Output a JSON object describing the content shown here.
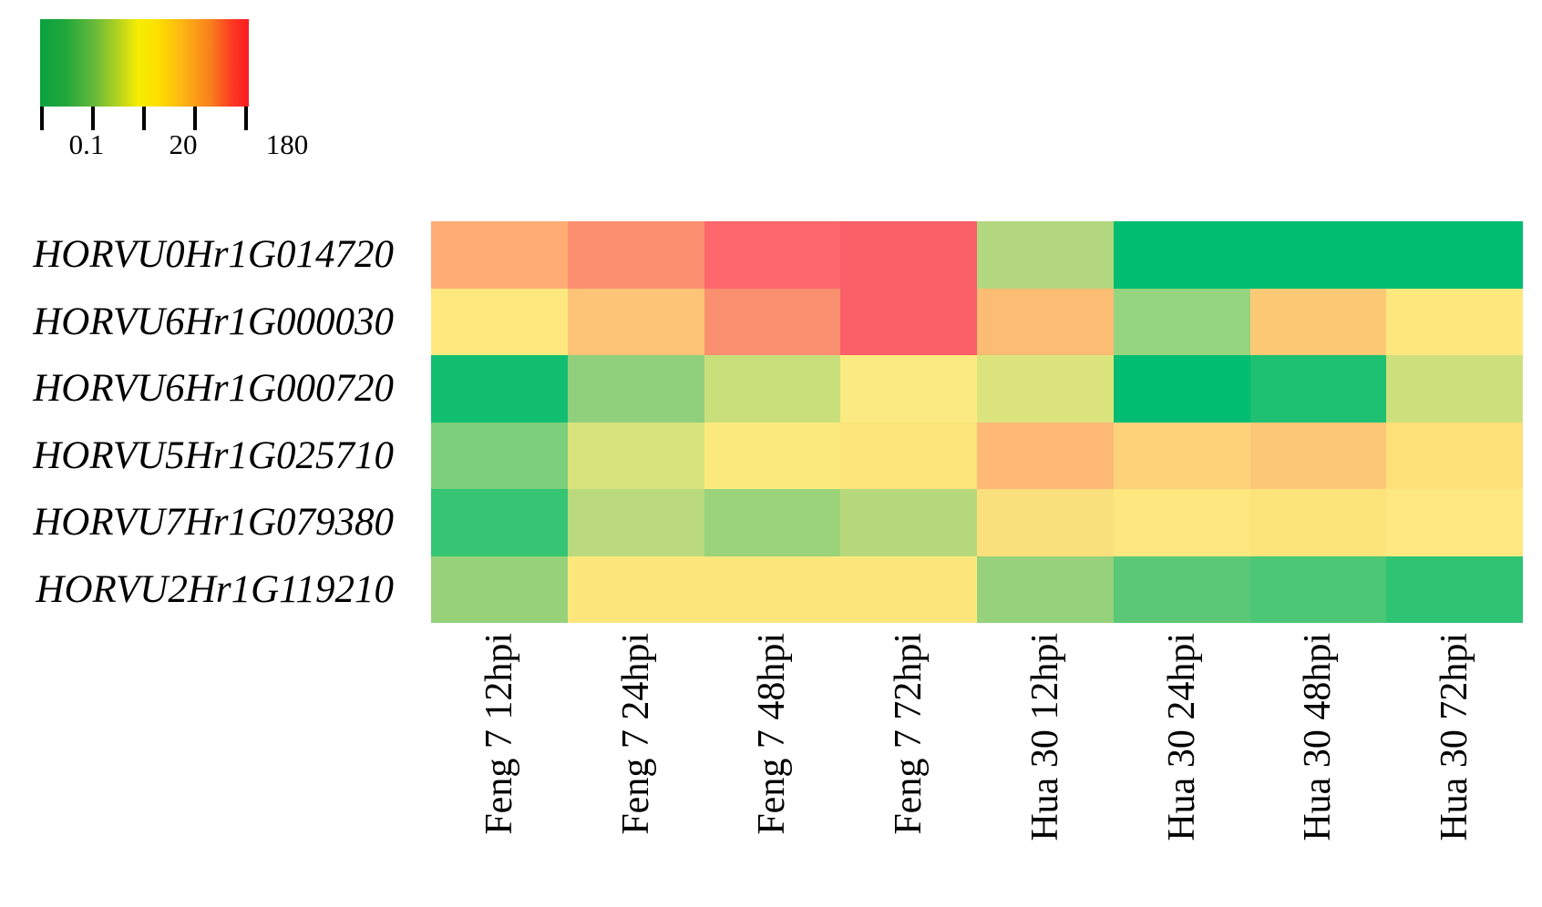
{
  "figure": {
    "background": "#ffffff",
    "text_color": "#000000"
  },
  "legend": {
    "min_label": "0.1",
    "mid_label": "20",
    "max_label": "180",
    "tick_count": 5,
    "tick_spacing_px": 56,
    "gradient_stops": [
      "#0BA23F 0%",
      "#1FA73C 12%",
      "#66B93A 26%",
      "#B8D41F 38%",
      "#F4EE00 47%",
      "#FEE000 56%",
      "#FDB713 68%",
      "#FA7D1E 82%",
      "#FB3A22 92%",
      "#FC1A21 100%"
    ]
  },
  "chart_data": {
    "type": "heatmap",
    "title": "",
    "xlabel": "",
    "ylabel": "",
    "legend_position": "top-left",
    "scale": {
      "min": 0.1,
      "mid": 20,
      "max": 180,
      "min_color": "#0BA23F",
      "mid_color": "#FEF200",
      "max_color": "#FC1A21",
      "mapping": "green=low, yellow=mid, red=high (log-like scale)"
    },
    "rows": [
      "HORVU0Hr1G014720",
      "HORVU6Hr1G000030",
      "HORVU6Hr1G000720",
      "HORVU5Hr1G025710",
      "HORVU7Hr1G079380",
      "HORVU2Hr1G119210"
    ],
    "columns": [
      "Feng 7 12hpi",
      "Feng 7 24hpi",
      "Feng 7 48hpi",
      "Feng 7 72hpi",
      "Hua 30 12hpi",
      "Hua 30 24hpi",
      "Hua 30 48hpi",
      "Hua 30 72hpi"
    ],
    "cell_colors": [
      [
        "#FFAD75",
        "#FC8F6F",
        "#FD676C",
        "#FB5F68",
        "#B3D77E",
        "#00BD72",
        "#00BD72",
        "#00BD72"
      ],
      [
        "#FFE97F",
        "#FDC477",
        "#FB9070",
        "#FB5F68",
        "#FDBC73",
        "#95D57F",
        "#FDC975",
        "#FDE87E"
      ],
      [
        "#12BF70",
        "#90D07D",
        "#C9DF7B",
        "#FBEA82",
        "#DCE47E",
        "#00BD72",
        "#1DC171",
        "#CDE07E"
      ],
      [
        "#7CCF7C",
        "#D8E37C",
        "#FCE97E",
        "#FDE47B",
        "#FEB976",
        "#FDD379",
        "#FDC875",
        "#FDE077"
      ],
      [
        "#35C573",
        "#BBDA7D",
        "#9BD37A",
        "#B7D97C",
        "#F9E07C",
        "#FDE77E",
        "#FDE47A",
        "#FDE97F"
      ],
      [
        "#97D27B",
        "#FDE77D",
        "#FDE77D",
        "#FDE77D",
        "#96D27B",
        "#5BC877",
        "#4CC775",
        "#2EC473"
      ]
    ],
    "values_est": [
      [
        45,
        70,
        120,
        130,
        8,
        0.3,
        0.3,
        0.3
      ],
      [
        18,
        35,
        65,
        130,
        32,
        10,
        35,
        18
      ],
      [
        0.5,
        9,
        14,
        20,
        16,
        0.3,
        0.7,
        14
      ],
      [
        7,
        15,
        19,
        21,
        33,
        27,
        33,
        22
      ],
      [
        2,
        12,
        10,
        11,
        22,
        19,
        20,
        18
      ],
      [
        9,
        19,
        19,
        19,
        9,
        3.5,
        3,
        1.5
      ]
    ]
  }
}
